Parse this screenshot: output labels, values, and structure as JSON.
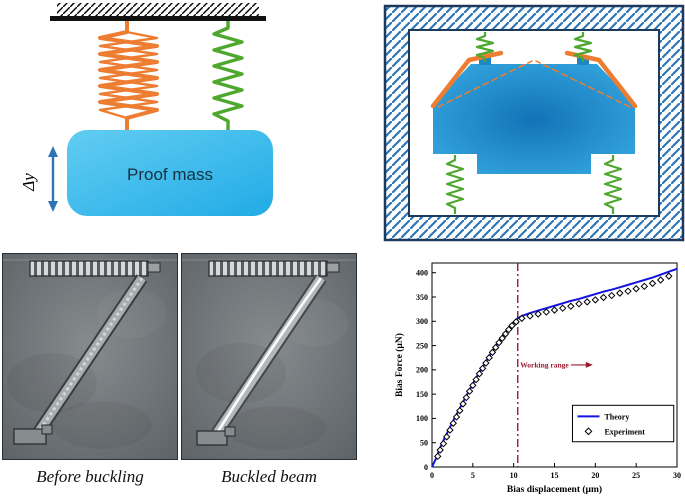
{
  "panels": {
    "top_left": {
      "proof_mass_label": "Proof mass",
      "delta_y_label": "Δy",
      "colors": {
        "mass": "#35b8ea",
        "buckled_spring": "#ED7D31",
        "linear_spring": "#4EA72E",
        "arrow": "#2E74B5"
      }
    },
    "top_right": {
      "colors": {
        "frame": "#1b3a5e",
        "hatch": "#2E75B6",
        "mass": "#2196d6",
        "beam": "#ED7D31",
        "spring": "#4EA72E"
      }
    },
    "bottom_left": {
      "caption_before": "Before buckling",
      "caption_after": "Buckled beam"
    }
  },
  "chart_data": {
    "type": "line",
    "title": "",
    "xlabel": "Bias displacement (µm)",
    "ylabel": "Bias Force (µN)",
    "xlim": [
      0,
      30
    ],
    "ylim": [
      0,
      420
    ],
    "x_ticks": [
      0,
      5,
      10,
      15,
      20,
      25,
      30
    ],
    "y_ticks": [
      0,
      50,
      100,
      150,
      200,
      250,
      300,
      350,
      400
    ],
    "grid": false,
    "legend": {
      "position": "lower-right",
      "entries": [
        "Theory",
        "Experiment"
      ]
    },
    "vline": {
      "x": 10.5,
      "style": "dash-dot",
      "color": "#9b1b30"
    },
    "annotation": {
      "text": "Working range",
      "color": "#9b1b30",
      "x": 10.8,
      "y": 205,
      "arrow_from_x": 17.0,
      "arrow_to_x": 19.2
    },
    "series": [
      {
        "name": "Theory",
        "type": "line",
        "color": "#1414e0",
        "points": [
          [
            0,
            0
          ],
          [
            0.5,
            18
          ],
          [
            1,
            40
          ],
          [
            1.5,
            58
          ],
          [
            2,
            75
          ],
          [
            2.5,
            92
          ],
          [
            3,
            108
          ],
          [
            3.5,
            124
          ],
          [
            4,
            140
          ],
          [
            4.5,
            156
          ],
          [
            5,
            171
          ],
          [
            5.5,
            186
          ],
          [
            6,
            200
          ],
          [
            6.5,
            214
          ],
          [
            7,
            228
          ],
          [
            7.5,
            241
          ],
          [
            8,
            254
          ],
          [
            8.5,
            266
          ],
          [
            9,
            278
          ],
          [
            9.5,
            289
          ],
          [
            10,
            298
          ],
          [
            10.5,
            306
          ],
          [
            11,
            311
          ],
          [
            12,
            317
          ],
          [
            13,
            322
          ],
          [
            14,
            327
          ],
          [
            15,
            332
          ],
          [
            16,
            337
          ],
          [
            17,
            342
          ],
          [
            18,
            346
          ],
          [
            19,
            351
          ],
          [
            20,
            356
          ],
          [
            21,
            361
          ],
          [
            22,
            365
          ],
          [
            23,
            370
          ],
          [
            24,
            375
          ],
          [
            25,
            380
          ],
          [
            26,
            385
          ],
          [
            27,
            390
          ],
          [
            28,
            396
          ],
          [
            29,
            402
          ],
          [
            30,
            408
          ]
        ]
      },
      {
        "name": "Experiment",
        "type": "scatter",
        "marker": "diamond",
        "color": "#000000",
        "points": [
          [
            0.7,
            22
          ],
          [
            1,
            35
          ],
          [
            1.4,
            48
          ],
          [
            1.8,
            62
          ],
          [
            2.2,
            76
          ],
          [
            2.6,
            90
          ],
          [
            3,
            103
          ],
          [
            3.4,
            116
          ],
          [
            3.8,
            130
          ],
          [
            4.2,
            143
          ],
          [
            4.6,
            156
          ],
          [
            5,
            168
          ],
          [
            5.4,
            180
          ],
          [
            5.8,
            192
          ],
          [
            6.2,
            203
          ],
          [
            6.6,
            214
          ],
          [
            7,
            225
          ],
          [
            7.4,
            236
          ],
          [
            7.8,
            246
          ],
          [
            8.2,
            256
          ],
          [
            8.6,
            265
          ],
          [
            9,
            274
          ],
          [
            9.4,
            283
          ],
          [
            9.8,
            291
          ],
          [
            10.3,
            299
          ],
          [
            11,
            306
          ],
          [
            12,
            311
          ],
          [
            13,
            315
          ],
          [
            14,
            319
          ],
          [
            15,
            323
          ],
          [
            16,
            327
          ],
          [
            17,
            331
          ],
          [
            18,
            336
          ],
          [
            19,
            340
          ],
          [
            20,
            344
          ],
          [
            21,
            349
          ],
          [
            22,
            353
          ],
          [
            23,
            358
          ],
          [
            24,
            362
          ],
          [
            25,
            367
          ],
          [
            26,
            372
          ],
          [
            27,
            378
          ],
          [
            28,
            385
          ],
          [
            29,
            393
          ]
        ]
      }
    ]
  }
}
